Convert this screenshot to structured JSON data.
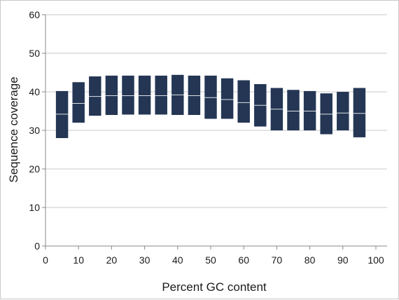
{
  "chart_data": {
    "type": "box",
    "title": "",
    "xlabel": "Percent GC content",
    "ylabel": "Sequence coverage",
    "xlim": [
      0,
      100
    ],
    "ylim": [
      0,
      60
    ],
    "xticks": [
      0,
      10,
      20,
      30,
      40,
      50,
      60,
      70,
      80,
      90,
      100
    ],
    "yticks": [
      0,
      10,
      20,
      30,
      40,
      50,
      60
    ],
    "grid": "horizontal",
    "legend": "none",
    "box_width": 3.7,
    "colors": {
      "box": "#243654",
      "median": "#ffffff",
      "grid": "#c8c8c8",
      "axis": "#888888"
    },
    "boxes": [
      {
        "x": 5,
        "low": 28,
        "median": 34.2,
        "high": 40.2
      },
      {
        "x": 10,
        "low": 32,
        "median": 37,
        "high": 42.5
      },
      {
        "x": 15,
        "low": 33.8,
        "median": 38.8,
        "high": 44
      },
      {
        "x": 20,
        "low": 34,
        "median": 39,
        "high": 44.2
      },
      {
        "x": 25,
        "low": 34.1,
        "median": 39,
        "high": 44.2
      },
      {
        "x": 30,
        "low": 34.1,
        "median": 39,
        "high": 44.2
      },
      {
        "x": 35,
        "low": 34.1,
        "median": 39,
        "high": 44.2
      },
      {
        "x": 40,
        "low": 34,
        "median": 39.2,
        "high": 44.4
      },
      {
        "x": 45,
        "low": 34,
        "median": 39,
        "high": 44.2
      },
      {
        "x": 50,
        "low": 33,
        "median": 38.5,
        "high": 44.2
      },
      {
        "x": 55,
        "low": 33,
        "median": 38,
        "high": 43.5
      },
      {
        "x": 60,
        "low": 32,
        "median": 37.2,
        "high": 43
      },
      {
        "x": 65,
        "low": 31,
        "median": 36.5,
        "high": 42
      },
      {
        "x": 70,
        "low": 30,
        "median": 35.5,
        "high": 41
      },
      {
        "x": 75,
        "low": 30,
        "median": 35,
        "high": 40.5
      },
      {
        "x": 80,
        "low": 30,
        "median": 35,
        "high": 40.2
      },
      {
        "x": 85,
        "low": 29,
        "median": 34.2,
        "high": 39.6
      },
      {
        "x": 90,
        "low": 30,
        "median": 34.5,
        "high": 40
      },
      {
        "x": 95,
        "low": 28.2,
        "median": 34.4,
        "high": 41
      }
    ]
  }
}
